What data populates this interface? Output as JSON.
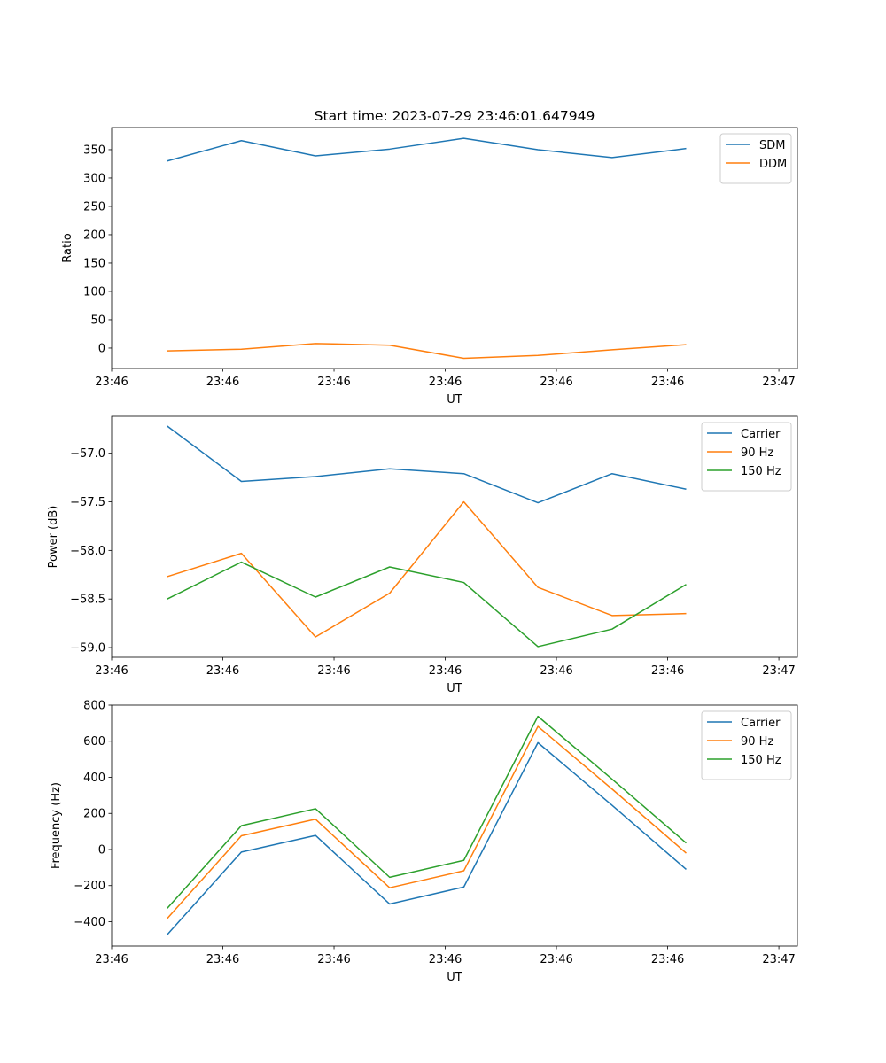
{
  "figure": {
    "title": "Start time: 2023-07-29 23:46:01.647949"
  },
  "chart_data": [
    {
      "type": "line",
      "title": "Start time: 2023-07-29 23:46:01.647949",
      "xlabel": "UT",
      "ylabel": "Ratio",
      "x": [
        0,
        1,
        2,
        3,
        4,
        5,
        6,
        7
      ],
      "xlim": [
        -0.75,
        8.5
      ],
      "xticks": [
        -0.75,
        0.75,
        2.25,
        3.75,
        5.25,
        6.75,
        8.25
      ],
      "xtick_labels": [
        "23:46",
        "23:46",
        "23:46",
        "23:46",
        "23:46",
        "23:46",
        "23:47"
      ],
      "ylim": [
        -36,
        389
      ],
      "yticks": [
        0,
        50,
        100,
        150,
        200,
        250,
        300,
        350
      ],
      "legend": "top-right",
      "series": [
        {
          "name": "SDM",
          "color": "#1f77b4",
          "values": [
            330,
            366,
            339,
            351,
            370,
            350,
            336,
            352
          ]
        },
        {
          "name": "DDM",
          "color": "#ff7f0e",
          "values": [
            -5,
            -2,
            8,
            5,
            -18,
            -13,
            -3,
            6
          ]
        }
      ]
    },
    {
      "type": "line",
      "title": "",
      "xlabel": "UT",
      "ylabel": "Power (dB)",
      "x": [
        0,
        1,
        2,
        3,
        4,
        5,
        6,
        7
      ],
      "xlim": [
        -0.75,
        8.5
      ],
      "xticks": [
        -0.75,
        0.75,
        2.25,
        3.75,
        5.25,
        6.75,
        8.25
      ],
      "xtick_labels": [
        "23:46",
        "23:46",
        "23:46",
        "23:46",
        "23:46",
        "23:46",
        "23:47"
      ],
      "ylim": [
        -59.1,
        -56.62
      ],
      "yticks": [
        -59.0,
        -58.5,
        -58.0,
        -57.5,
        -57.0
      ],
      "ytick_labels": [
        "−59.0",
        "−58.5",
        "−58.0",
        "−57.5",
        "−57.0"
      ],
      "legend": "top-right",
      "series": [
        {
          "name": "Carrier",
          "color": "#1f77b4",
          "values": [
            -56.72,
            -57.29,
            -57.24,
            -57.16,
            -57.21,
            -57.51,
            -57.21,
            -57.37
          ]
        },
        {
          "name": "90 Hz",
          "color": "#ff7f0e",
          "values": [
            -58.27,
            -58.03,
            -58.89,
            -58.44,
            -57.5,
            -58.38,
            -58.67,
            -58.65
          ]
        },
        {
          "name": "150 Hz",
          "color": "#2ca02c",
          "values": [
            -58.5,
            -58.12,
            -58.48,
            -58.17,
            -58.33,
            -58.99,
            -58.81,
            -58.35
          ]
        }
      ]
    },
    {
      "type": "line",
      "title": "",
      "xlabel": "UT",
      "ylabel": "Frequency (Hz)",
      "x": [
        0,
        1,
        2,
        3,
        4,
        5,
        6,
        7
      ],
      "xlim": [
        -0.75,
        8.5
      ],
      "xticks": [
        -0.75,
        0.75,
        2.25,
        3.75,
        5.25,
        6.75,
        8.25
      ],
      "xtick_labels": [
        "23:46",
        "23:46",
        "23:46",
        "23:46",
        "23:46",
        "23:46",
        "23:47"
      ],
      "ylim": [
        -535,
        800
      ],
      "yticks": [
        -400,
        -200,
        0,
        200,
        400,
        600,
        800
      ],
      "ytick_labels": [
        "−400",
        "−200",
        "0",
        "200",
        "400",
        "600",
        "800"
      ],
      "legend": "top-right",
      "series": [
        {
          "name": "Carrier",
          "color": "#1f77b4",
          "values": [
            -472,
            -14,
            78,
            -302,
            -208,
            592,
            245,
            -110
          ]
        },
        {
          "name": "90 Hz",
          "color": "#ff7f0e",
          "values": [
            -382,
            76,
            168,
            -212,
            -118,
            682,
            335,
            -20
          ]
        },
        {
          "name": "150 Hz",
          "color": "#2ca02c",
          "values": [
            -326,
            132,
            226,
            -154,
            -60,
            738,
            390,
            36
          ]
        }
      ]
    }
  ]
}
